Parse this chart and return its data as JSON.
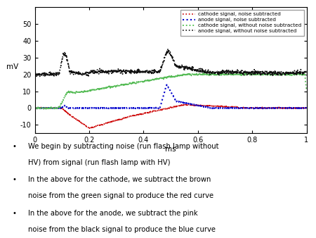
{
  "title": "",
  "xlabel": "ms",
  "ylabel": "mV",
  "xlim": [
    0,
    1.0
  ],
  "ylim": [
    -15,
    60
  ],
  "yticks": [
    -10,
    0,
    10,
    20,
    30,
    40,
    50
  ],
  "xticks": [
    0,
    0.2,
    0.4,
    0.6,
    0.8,
    1.0
  ],
  "xtick_labels": [
    "0",
    "0.2",
    "0.4",
    "0.6",
    "0.8",
    "1"
  ],
  "legend_entries": [
    "cathode signal, noise subtracted",
    "anode signal, noise subtracted",
    "cathode signal, without noise subtracted",
    "anode signal, without noise subtracted"
  ],
  "legend_colors": [
    "#cc0000",
    "#0000cc",
    "#44bb44",
    "#111111"
  ],
  "colors": {
    "cathode_noise_sub": "#cc0000",
    "anode_noise_sub": "#0000cc",
    "cathode_no_sub": "#55bb55",
    "anode_no_sub": "#111111"
  },
  "text_items": [
    "We begin by subtracting noise (run flash lamp without HV) from signal (run flash lamp with HV)",
    "In the above for the cathode, we subtract the brown noise from the green signal to produce the red curve",
    "In the above for the anode, we subtract the pink noise from the black signal to produce the blue curve"
  ],
  "background_color": "#ffffff",
  "figsize": [
    4.5,
    3.38
  ],
  "dpi": 100
}
